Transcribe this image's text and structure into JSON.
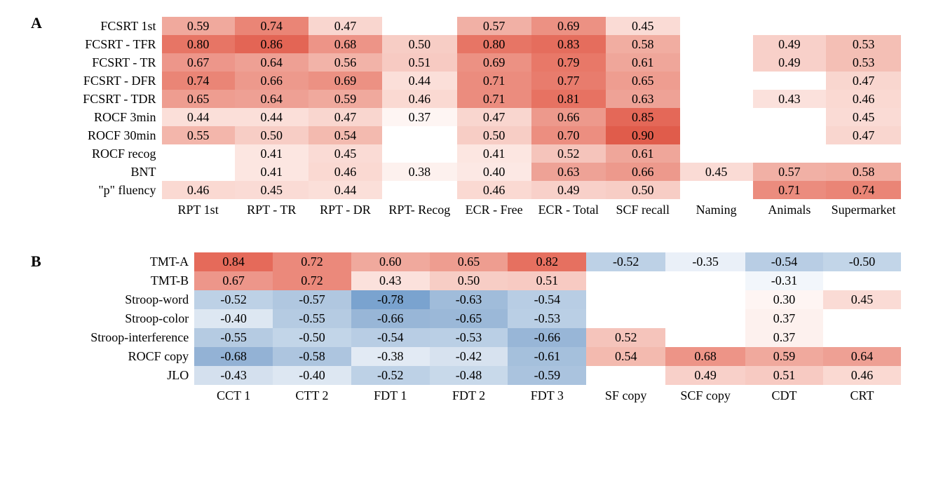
{
  "panelA": {
    "label": "A",
    "cell_fontsize": 18,
    "rowlabel_fontsize": 18,
    "collabel_fontsize": 18,
    "colormap": {
      "pos_min": "#fef5f3",
      "pos_mid": "#f4b1a5",
      "pos_max": "#e06252",
      "blank": "#ffffff"
    },
    "columns": [
      "RPT 1st",
      "RPT - TR",
      "RPT - DR",
      "RPT- Recog",
      "ECR - Free",
      "ECR - Total",
      "SCF recall",
      "Naming",
      "Animals",
      "Supermarket"
    ],
    "rows": [
      "FCSRT 1st",
      "FCSRT - TFR",
      "FCSRT - TR",
      "FCSRT - DFR",
      "FCSRT - TDR",
      "ROCF 3min",
      "ROCF 30min",
      "ROCF recog",
      "BNT",
      "\"p\" fluency"
    ],
    "cells": [
      [
        {
          "v": "0.59",
          "bg": "#f0a99d"
        },
        {
          "v": "0.74",
          "bg": "#ea8576"
        },
        {
          "v": "0.47",
          "bg": "#f9d6cf"
        },
        {
          "v": "",
          "bg": "#ffffff"
        },
        {
          "v": "0.57",
          "bg": "#f1b0a5"
        },
        {
          "v": "0.69",
          "bg": "#ec9183"
        },
        {
          "v": "0.45",
          "bg": "#fadbd5"
        },
        {
          "v": "",
          "bg": "#ffffff"
        },
        {
          "v": "",
          "bg": "#ffffff"
        },
        {
          "v": "",
          "bg": "#ffffff"
        }
      ],
      [
        {
          "v": "0.80",
          "bg": "#e77565"
        },
        {
          "v": "0.86",
          "bg": "#e36555"
        },
        {
          "v": "0.68",
          "bg": "#ed9487"
        },
        {
          "v": "0.50",
          "bg": "#f7cdc5"
        },
        {
          "v": "0.80",
          "bg": "#e77565"
        },
        {
          "v": "0.83",
          "bg": "#e56d5d"
        },
        {
          "v": "0.58",
          "bg": "#f1ada1"
        },
        {
          "v": "",
          "bg": "#ffffff"
        },
        {
          "v": "0.49",
          "bg": "#f8d0c9"
        },
        {
          "v": "0.53",
          "bg": "#f4bfb5"
        }
      ],
      [
        {
          "v": "0.67",
          "bg": "#ed968a"
        },
        {
          "v": "0.64",
          "bg": "#eea094"
        },
        {
          "v": "0.56",
          "bg": "#f2b3a8"
        },
        {
          "v": "0.51",
          "bg": "#f7cac2"
        },
        {
          "v": "0.69",
          "bg": "#ec9183"
        },
        {
          "v": "0.79",
          "bg": "#e87868"
        },
        {
          "v": "0.61",
          "bg": "#efa69a"
        },
        {
          "v": "",
          "bg": "#ffffff"
        },
        {
          "v": "0.49",
          "bg": "#f8d0c9"
        },
        {
          "v": "0.53",
          "bg": "#f4bfb5"
        }
      ],
      [
        {
          "v": "0.74",
          "bg": "#ea8576"
        },
        {
          "v": "0.66",
          "bg": "#ed998c"
        },
        {
          "v": "0.69",
          "bg": "#ec9183"
        },
        {
          "v": "0.44",
          "bg": "#fbdfd9"
        },
        {
          "v": "0.71",
          "bg": "#eb8c7e"
        },
        {
          "v": "0.77",
          "bg": "#e87c6d"
        },
        {
          "v": "0.65",
          "bg": "#ee9d90"
        },
        {
          "v": "",
          "bg": "#ffffff"
        },
        {
          "v": "",
          "bg": "#ffffff"
        },
        {
          "v": "0.47",
          "bg": "#f9d6cf"
        }
      ],
      [
        {
          "v": "0.65",
          "bg": "#ee9d90"
        },
        {
          "v": "0.64",
          "bg": "#eea094"
        },
        {
          "v": "0.59",
          "bg": "#f0a99d"
        },
        {
          "v": "0.46",
          "bg": "#fad9d2"
        },
        {
          "v": "0.71",
          "bg": "#eb8c7e"
        },
        {
          "v": "0.81",
          "bg": "#e77262"
        },
        {
          "v": "0.63",
          "bg": "#eea296"
        },
        {
          "v": "",
          "bg": "#ffffff"
        },
        {
          "v": "0.43",
          "bg": "#fbe1dc"
        },
        {
          "v": "0.46",
          "bg": "#fad9d2"
        }
      ],
      [
        {
          "v": "0.44",
          "bg": "#fbdfd9"
        },
        {
          "v": "0.44",
          "bg": "#fbdfd9"
        },
        {
          "v": "0.47",
          "bg": "#f9d6cf"
        },
        {
          "v": "0.37",
          "bg": "#fef5f3"
        },
        {
          "v": "0.47",
          "bg": "#f9d6cf"
        },
        {
          "v": "0.66",
          "bg": "#ed998c"
        },
        {
          "v": "0.85",
          "bg": "#e46858"
        },
        {
          "v": "",
          "bg": "#ffffff"
        },
        {
          "v": "",
          "bg": "#ffffff"
        },
        {
          "v": "0.45",
          "bg": "#fadbd5"
        }
      ],
      [
        {
          "v": "0.55",
          "bg": "#f3b6ab"
        },
        {
          "v": "0.50",
          "bg": "#f7cdc5"
        },
        {
          "v": "0.54",
          "bg": "#f3baaf"
        },
        {
          "v": "",
          "bg": "#ffffff"
        },
        {
          "v": "0.50",
          "bg": "#f7cdc5"
        },
        {
          "v": "0.70",
          "bg": "#ec8e80"
        },
        {
          "v": "0.90",
          "bg": "#e05c4b"
        },
        {
          "v": "",
          "bg": "#ffffff"
        },
        {
          "v": "",
          "bg": "#ffffff"
        },
        {
          "v": "0.47",
          "bg": "#f9d6cf"
        }
      ],
      [
        {
          "v": "",
          "bg": "#ffffff"
        },
        {
          "v": "0.41",
          "bg": "#fce6e1"
        },
        {
          "v": "0.45",
          "bg": "#fadbd5"
        },
        {
          "v": "",
          "bg": "#ffffff"
        },
        {
          "v": "0.41",
          "bg": "#fce6e1"
        },
        {
          "v": "0.52",
          "bg": "#f5c4bb"
        },
        {
          "v": "0.61",
          "bg": "#efa69a"
        },
        {
          "v": "",
          "bg": "#ffffff"
        },
        {
          "v": "",
          "bg": "#ffffff"
        },
        {
          "v": "",
          "bg": "#ffffff"
        }
      ],
      [
        {
          "v": "",
          "bg": "#ffffff"
        },
        {
          "v": "0.41",
          "bg": "#fce6e1"
        },
        {
          "v": "0.46",
          "bg": "#fad9d2"
        },
        {
          "v": "0.38",
          "bg": "#fdf1ee"
        },
        {
          "v": "0.40",
          "bg": "#fce8e4"
        },
        {
          "v": "0.63",
          "bg": "#eea296"
        },
        {
          "v": "0.66",
          "bg": "#ed998c"
        },
        {
          "v": "0.45",
          "bg": "#fadbd5"
        },
        {
          "v": "0.57",
          "bg": "#f1b0a5"
        },
        {
          "v": "0.58",
          "bg": "#f1ada1"
        }
      ],
      [
        {
          "v": "0.46",
          "bg": "#fad9d2"
        },
        {
          "v": "0.45",
          "bg": "#fadbd5"
        },
        {
          "v": "0.44",
          "bg": "#fbdfd9"
        },
        {
          "v": "",
          "bg": "#ffffff"
        },
        {
          "v": "0.46",
          "bg": "#fad9d2"
        },
        {
          "v": "0.49",
          "bg": "#f8d0c9"
        },
        {
          "v": "0.50",
          "bg": "#f7cdc5"
        },
        {
          "v": "",
          "bg": "#ffffff"
        },
        {
          "v": "0.71",
          "bg": "#eb8c7e"
        },
        {
          "v": "0.74",
          "bg": "#ea8576"
        }
      ]
    ]
  },
  "panelB": {
    "label": "B",
    "cell_fontsize": 18,
    "rowlabel_fontsize": 18,
    "collabel_fontsize": 18,
    "colormap": {
      "pos_min": "#fef5f3",
      "pos_max": "#e06252",
      "neg_min": "#f4f8fc",
      "neg_max": "#6f9bcb",
      "blank": "#ffffff"
    },
    "columns": [
      "CCT 1",
      "CTT 2",
      "FDT 1",
      "FDT 2",
      "FDT 3",
      "SF copy",
      "SCF copy",
      "CDT",
      "CRT"
    ],
    "rows": [
      "TMT-A",
      "TMT-B",
      "Stroop-word",
      "Stroop-color",
      "Stroop-interference",
      "ROCF copy",
      "JLO"
    ],
    "cells": [
      [
        {
          "v": "0.84",
          "bg": "#e56a5a"
        },
        {
          "v": "0.72",
          "bg": "#eb897b"
        },
        {
          "v": "0.60",
          "bg": "#f0a99d"
        },
        {
          "v": "0.65",
          "bg": "#ee9d90"
        },
        {
          "v": "0.82",
          "bg": "#e67060"
        },
        {
          "v": "-0.52",
          "bg": "#bdd1e6"
        },
        {
          "v": "-0.35",
          "bg": "#eaf0f8"
        },
        {
          "v": "-0.54",
          "bg": "#b8cde4"
        },
        {
          "v": "-0.50",
          "bg": "#c2d5e8"
        }
      ],
      [
        {
          "v": "0.67",
          "bg": "#ed968a"
        },
        {
          "v": "0.72",
          "bg": "#eb897b"
        },
        {
          "v": "0.43",
          "bg": "#fbe1dc"
        },
        {
          "v": "0.50",
          "bg": "#f7cdc5"
        },
        {
          "v": "0.51",
          "bg": "#f7cac2"
        },
        {
          "v": "",
          "bg": "#ffffff"
        },
        {
          "v": "",
          "bg": "#ffffff"
        },
        {
          "v": "-0.31",
          "bg": "#f2f6fb"
        },
        {
          "v": "",
          "bg": "#ffffff"
        }
      ],
      [
        {
          "v": "-0.52",
          "bg": "#bdd1e6"
        },
        {
          "v": "-0.57",
          "bg": "#b0c7e0"
        },
        {
          "v": "-0.78",
          "bg": "#7aa3cf"
        },
        {
          "v": "-0.63",
          "bg": "#a0bcda"
        },
        {
          "v": "-0.54",
          "bg": "#b8cde4"
        },
        {
          "v": "",
          "bg": "#ffffff"
        },
        {
          "v": "",
          "bg": "#ffffff"
        },
        {
          "v": "0.30",
          "bg": "#fef5f3"
        },
        {
          "v": "0.45",
          "bg": "#fadbd5"
        }
      ],
      [
        {
          "v": "-0.40",
          "bg": "#dde7f2"
        },
        {
          "v": "-0.55",
          "bg": "#b5cbe2"
        },
        {
          "v": "-0.66",
          "bg": "#98b6d7"
        },
        {
          "v": "-0.65",
          "bg": "#9bb8d8"
        },
        {
          "v": "-0.53",
          "bg": "#bacfe5"
        },
        {
          "v": "",
          "bg": "#ffffff"
        },
        {
          "v": "",
          "bg": "#ffffff"
        },
        {
          "v": "0.37",
          "bg": "#fdf1ee"
        },
        {
          "v": "",
          "bg": "#ffffff"
        }
      ],
      [
        {
          "v": "-0.55",
          "bg": "#b5cbe2"
        },
        {
          "v": "-0.50",
          "bg": "#c2d5e8"
        },
        {
          "v": "-0.54",
          "bg": "#b8cde4"
        },
        {
          "v": "-0.53",
          "bg": "#bacfe5"
        },
        {
          "v": "-0.66",
          "bg": "#98b6d7"
        },
        {
          "v": "0.52",
          "bg": "#f5c4bb"
        },
        {
          "v": "",
          "bg": "#ffffff"
        },
        {
          "v": "0.37",
          "bg": "#fdf1ee"
        },
        {
          "v": "",
          "bg": "#ffffff"
        }
      ],
      [
        {
          "v": "-0.68",
          "bg": "#93b2d5"
        },
        {
          "v": "-0.58",
          "bg": "#adc5df"
        },
        {
          "v": "-0.38",
          "bg": "#e2eaf4"
        },
        {
          "v": "-0.42",
          "bg": "#d7e2ef"
        },
        {
          "v": "-0.61",
          "bg": "#a5c0dc"
        },
        {
          "v": "0.54",
          "bg": "#f3baaf"
        },
        {
          "v": "0.68",
          "bg": "#ed9487"
        },
        {
          "v": "0.59",
          "bg": "#f0a99d"
        },
        {
          "v": "0.64",
          "bg": "#eea094"
        }
      ],
      [
        {
          "v": "-0.43",
          "bg": "#d4e0ee"
        },
        {
          "v": "-0.40",
          "bg": "#dde7f2"
        },
        {
          "v": "-0.52",
          "bg": "#bdd1e6"
        },
        {
          "v": "-0.48",
          "bg": "#c8d9ea"
        },
        {
          "v": "-0.59",
          "bg": "#aac3de"
        },
        {
          "v": "",
          "bg": "#ffffff"
        },
        {
          "v": "0.49",
          "bg": "#f8d0c9"
        },
        {
          "v": "0.51",
          "bg": "#f7cac2"
        },
        {
          "v": "0.46",
          "bg": "#fad9d2"
        }
      ]
    ]
  }
}
